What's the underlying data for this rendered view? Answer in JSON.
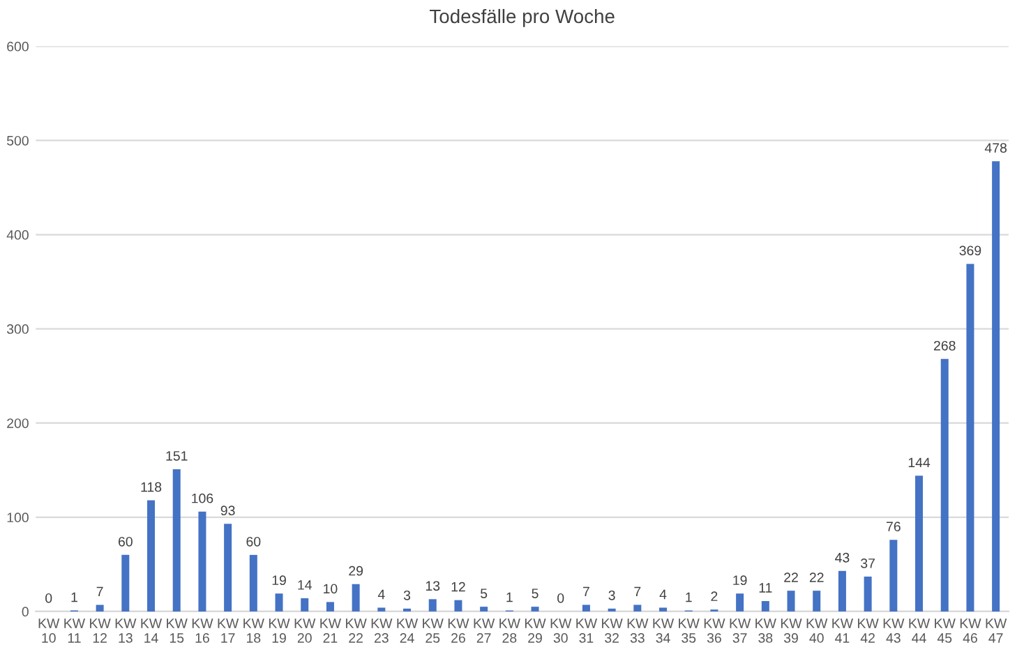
{
  "chart_data": {
    "type": "bar",
    "title": "Todesfälle pro Woche",
    "categories": [
      "KW 10",
      "KW 11",
      "KW 12",
      "KW 13",
      "KW 14",
      "KW 15",
      "KW 16",
      "KW 17",
      "KW 18",
      "KW 19",
      "KW 20",
      "KW 21",
      "KW 22",
      "KW 23",
      "KW 24",
      "KW 25",
      "KW 26",
      "KW 27",
      "KW 28",
      "KW 29",
      "KW 30",
      "KW 31",
      "KW 32",
      "KW 33",
      "KW 34",
      "KW 35",
      "KW 36",
      "KW 37",
      "KW 38",
      "KW 39",
      "KW 40",
      "KW 41",
      "KW 42",
      "KW 43",
      "KW 44",
      "KW 45",
      "KW 46",
      "KW 47"
    ],
    "values": [
      0,
      1,
      7,
      60,
      118,
      151,
      106,
      93,
      60,
      19,
      14,
      10,
      29,
      4,
      3,
      13,
      12,
      5,
      1,
      5,
      0,
      7,
      3,
      7,
      4,
      1,
      2,
      19,
      11,
      22,
      22,
      43,
      37,
      76,
      144,
      268,
      369,
      478
    ],
    "color": "#4472c4",
    "ylim": [
      0,
      600
    ],
    "yticks": [
      0,
      100,
      200,
      300,
      400,
      500,
      600
    ],
    "grid": "y",
    "data_labels": true
  }
}
